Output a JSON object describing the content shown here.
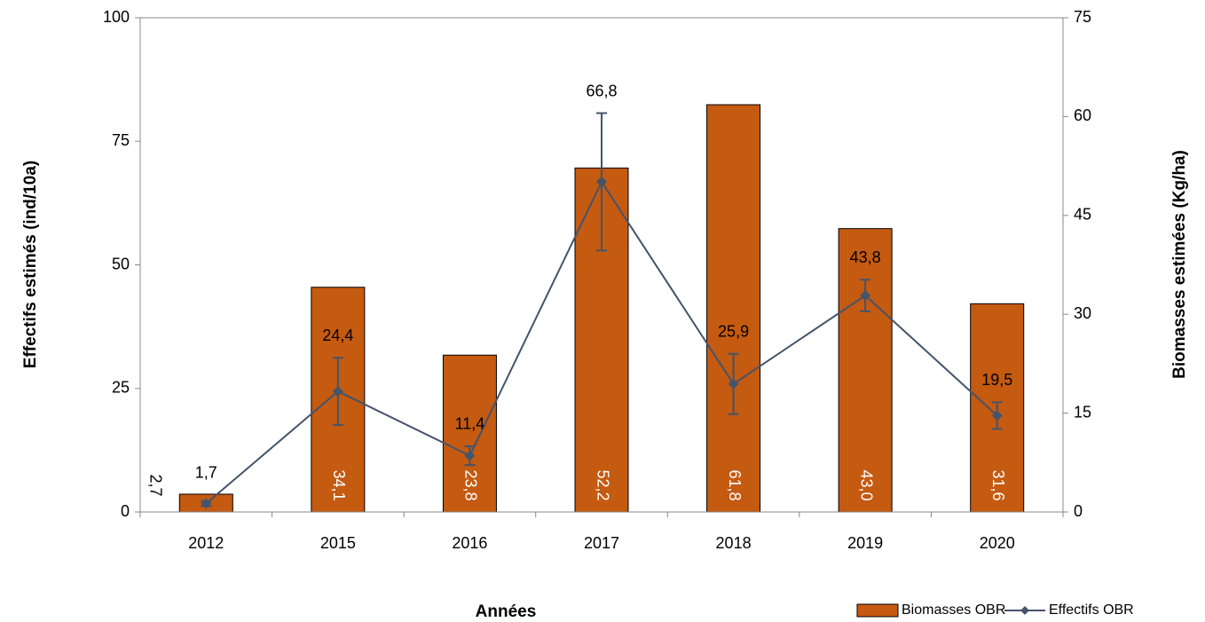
{
  "chart_data": {
    "type": "bar-line",
    "x_label": "Années",
    "y_label": "Effectifs estimés (ind/10a)",
    "y2_label": "Biomasses estimées (Kg/ha)",
    "categories": [
      "2012",
      "2015",
      "2016",
      "2017",
      "2018",
      "2019",
      "2020"
    ],
    "ylim": [
      0,
      100
    ],
    "yticks": [
      0,
      25,
      50,
      75,
      100
    ],
    "y2lim": [
      0,
      75
    ],
    "y2ticks": [
      0,
      15,
      30,
      45,
      60,
      75
    ],
    "series": [
      {
        "name": "Biomasses OBR",
        "type": "bar",
        "axis": "y2",
        "color": "#c55a11",
        "values": [
          2.7,
          34.1,
          23.8,
          52.2,
          61.8,
          43.0,
          31.6
        ],
        "value_labels": [
          "2,7",
          "34,1",
          "23,8",
          "52,2",
          "61,8",
          "43,0",
          "31,6"
        ]
      },
      {
        "name": "Effectifs OBR",
        "type": "line",
        "axis": "y",
        "color": "#44546a",
        "values": [
          1.7,
          24.4,
          11.4,
          66.8,
          25.9,
          43.8,
          19.5
        ],
        "errors": [
          0.5,
          6.8,
          1.9,
          13.9,
          6.1,
          3.2,
          2.7
        ],
        "value_labels": [
          "1,7",
          "24,4",
          "11,4",
          "66,8",
          "25,9",
          "43,8",
          "19,5"
        ]
      }
    ]
  }
}
